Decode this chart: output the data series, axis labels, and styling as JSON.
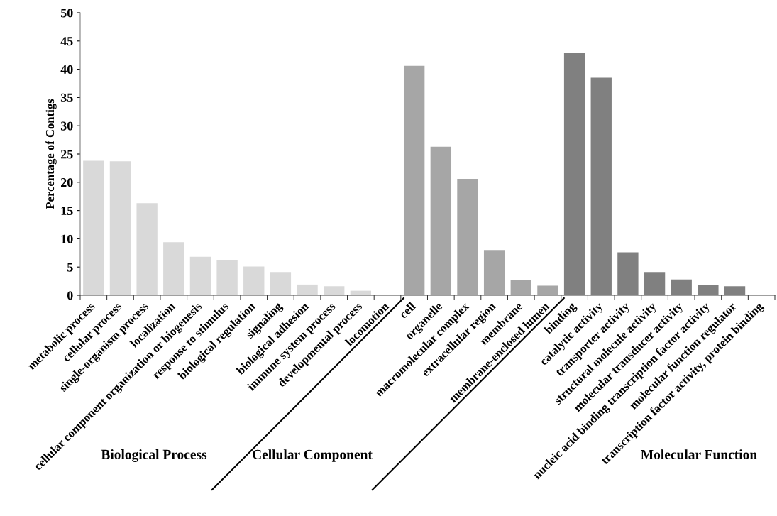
{
  "chart_data": {
    "type": "bar",
    "ylabel": "Percentage of Contigs",
    "categories": [
      "metabolic process",
      "cellular process",
      "single-organism process",
      "localization",
      "cellular component organization or biogenesis",
      "response to stimulus",
      "biological regulation",
      "signaling",
      "biological adhesion",
      "immune system process",
      "developmental process",
      "locomotion",
      "cell",
      "organelle",
      "macromolecular complex",
      "extracellular region",
      "membrane",
      "membrane-enclosed lumen",
      "binding",
      "catalytic activity",
      "transporter activity",
      "structural molecule activity",
      "molecular transducer activity",
      "nucleic acid binding transcription factor activity",
      "molecular function regulator",
      "transcription factor activity, protein binding"
    ],
    "values": [
      23.8,
      23.7,
      16.3,
      9.4,
      6.8,
      6.2,
      5.1,
      4.1,
      1.9,
      1.6,
      0.8,
      0,
      40.6,
      26.3,
      20.6,
      8.0,
      2.7,
      1.7,
      42.9,
      38.5,
      7.6,
      4.1,
      2.8,
      1.8,
      1.6,
      0.1
    ],
    "colors": [
      "#d9d9d9",
      "#d9d9d9",
      "#d9d9d9",
      "#d9d9d9",
      "#d9d9d9",
      "#d9d9d9",
      "#d9d9d9",
      "#d9d9d9",
      "#d9d9d9",
      "#d9d9d9",
      "#d9d9d9",
      "#d9d9d9",
      "#a6a6a6",
      "#a6a6a6",
      "#a6a6a6",
      "#a6a6a6",
      "#a6a6a6",
      "#a6a6a6",
      "#808080",
      "#808080",
      "#808080",
      "#808080",
      "#808080",
      "#808080",
      "#808080",
      "#4472c4"
    ],
    "ylim": [
      0,
      50
    ],
    "yticks": [
      0,
      5,
      10,
      15,
      20,
      25,
      30,
      35,
      40,
      45,
      50
    ],
    "grid": false,
    "legend": false,
    "annotations": [
      "Biological Process",
      "Cellular Component",
      "Molecular Function"
    ]
  }
}
